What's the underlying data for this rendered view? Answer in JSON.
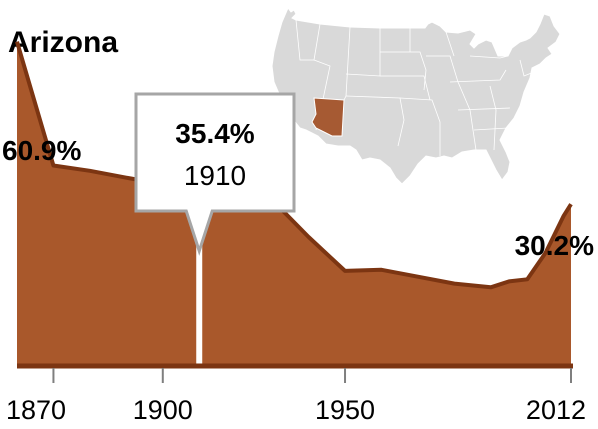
{
  "chart_data": {
    "type": "area",
    "title": "Arizona",
    "x": [
      1860,
      1870,
      1880,
      1890,
      1900,
      1910,
      1920,
      1930,
      1940,
      1950,
      1960,
      1970,
      1980,
      1990,
      1995,
      2000,
      2005,
      2010,
      2012
    ],
    "values": [
      60.9,
      37.5,
      36.5,
      35.2,
      34.0,
      35.4,
      34.5,
      31.0,
      24.0,
      17.6,
      17.8,
      16.5,
      15.2,
      14.5,
      15.6,
      16.0,
      21.0,
      28.0,
      30.2
    ],
    "xlim": [
      1860,
      2012
    ],
    "ylim": [
      0,
      65
    ],
    "x_ticks": [
      "1870",
      "1900",
      "1950",
      "2012"
    ],
    "x_tick_values": [
      1870,
      1900,
      1950,
      2012
    ],
    "highlight": {
      "x": 1910,
      "value_label": "35.4%",
      "year_label": "1910"
    },
    "annotations": [
      {
        "x": 1860,
        "label": "60.9%"
      },
      {
        "x": 2012,
        "label": "30.2%"
      }
    ],
    "grid": false,
    "legend": "none",
    "inset_map": "United States, Arizona highlighted"
  },
  "colors": {
    "area_fill": "#A9582B",
    "area_edge": "#7C3512",
    "highlight_line": "#ffffff",
    "callout_border": "#A6A6A6",
    "map_fill": "#D9D9D9",
    "map_border": "#FFFFFF",
    "map_highlight": "#A65A33",
    "tick": "#7F7F7F"
  }
}
